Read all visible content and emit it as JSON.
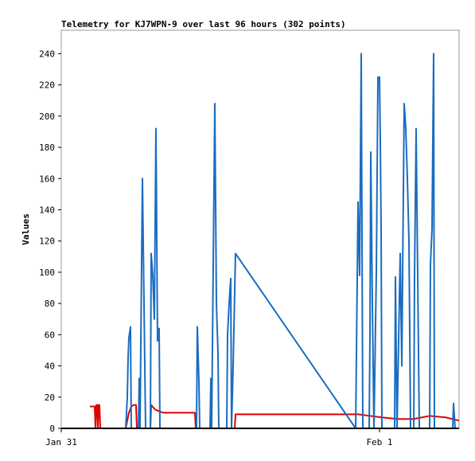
{
  "chart_data": {
    "type": "line",
    "title": "Telemetry for KJ7WPN-9 over last 96 hours (302 points)",
    "ylabel": "Values",
    "xlim": [
      0,
      30
    ],
    "xticks": [
      {
        "value": 0,
        "label": "Jan 31"
      },
      {
        "value": 24,
        "label": "Feb 1"
      }
    ],
    "ylim": [
      0,
      255
    ],
    "yticks": [
      0,
      20,
      40,
      60,
      80,
      100,
      120,
      140,
      160,
      180,
      200,
      220,
      240
    ],
    "grid": false,
    "series": [
      {
        "color": "#e00000",
        "x": [
          2.16,
          2.52,
          2.58,
          2.64,
          2.7,
          2.76,
          2.82,
          2.88,
          2.94,
          4.86,
          5.1,
          5.28,
          5.46,
          5.64,
          5.7,
          6.72,
          6.78,
          7.08,
          7.38,
          7.68,
          10.08,
          10.14,
          13.08,
          13.14,
          22.38,
          23.28,
          24.18,
          25.38,
          26.58,
          27.78,
          28.98,
          30.0
        ],
        "values": [
          14,
          14,
          0,
          15,
          15,
          0,
          15,
          15,
          0,
          0,
          10,
          14,
          15,
          15,
          0,
          0,
          15,
          12,
          11,
          10,
          10,
          0,
          0,
          9,
          9,
          8,
          7,
          6,
          6,
          8,
          7,
          5
        ]
      },
      {
        "color": "#1a6cc0",
        "x": [
          4.86,
          4.98,
          5.04,
          5.1,
          5.22,
          5.28,
          5.82,
          5.88,
          5.94,
          6.12,
          6.24,
          6.36,
          6.72,
          6.78,
          6.9,
          7.02,
          7.14,
          7.26,
          7.38,
          7.44,
          10.2,
          10.26,
          10.38,
          10.44,
          11.22,
          11.28,
          11.34,
          11.46,
          11.58,
          11.7,
          11.82,
          11.88,
          12.48,
          12.54,
          12.66,
          12.78,
          12.84,
          12.96,
          13.14,
          22.2,
          22.38,
          22.5,
          22.62,
          22.74,
          23.22,
          23.28,
          23.34,
          23.46,
          23.58,
          23.76,
          23.88,
          24.0,
          24.06,
          24.12,
          24.18,
          25.14,
          25.2,
          25.32,
          25.56,
          25.68,
          25.86,
          25.98,
          26.1,
          26.22,
          26.34,
          26.58,
          26.64,
          26.76,
          26.88,
          27.0,
          27.78,
          27.84,
          27.96,
          28.08,
          28.14,
          29.52,
          29.58,
          29.7,
          30.0
        ],
        "values": [
          0,
          20,
          45,
          58,
          65,
          0,
          0,
          32,
          0,
          160,
          80,
          0,
          0,
          112,
          98,
          70,
          192,
          56,
          64,
          0,
          0,
          65,
          30,
          0,
          0,
          32,
          0,
          105,
          208,
          80,
          48,
          0,
          0,
          60,
          80,
          96,
          0,
          40,
          112,
          0,
          145,
          98,
          240,
          0,
          0,
          60,
          177,
          80,
          0,
          100,
          225,
          225,
          184,
          128,
          0,
          0,
          97,
          0,
          112,
          40,
          208,
          192,
          160,
          120,
          0,
          0,
          97,
          192,
          97,
          0,
          0,
          105,
          128,
          240,
          0,
          0,
          16,
          0,
          0
        ]
      }
    ]
  }
}
